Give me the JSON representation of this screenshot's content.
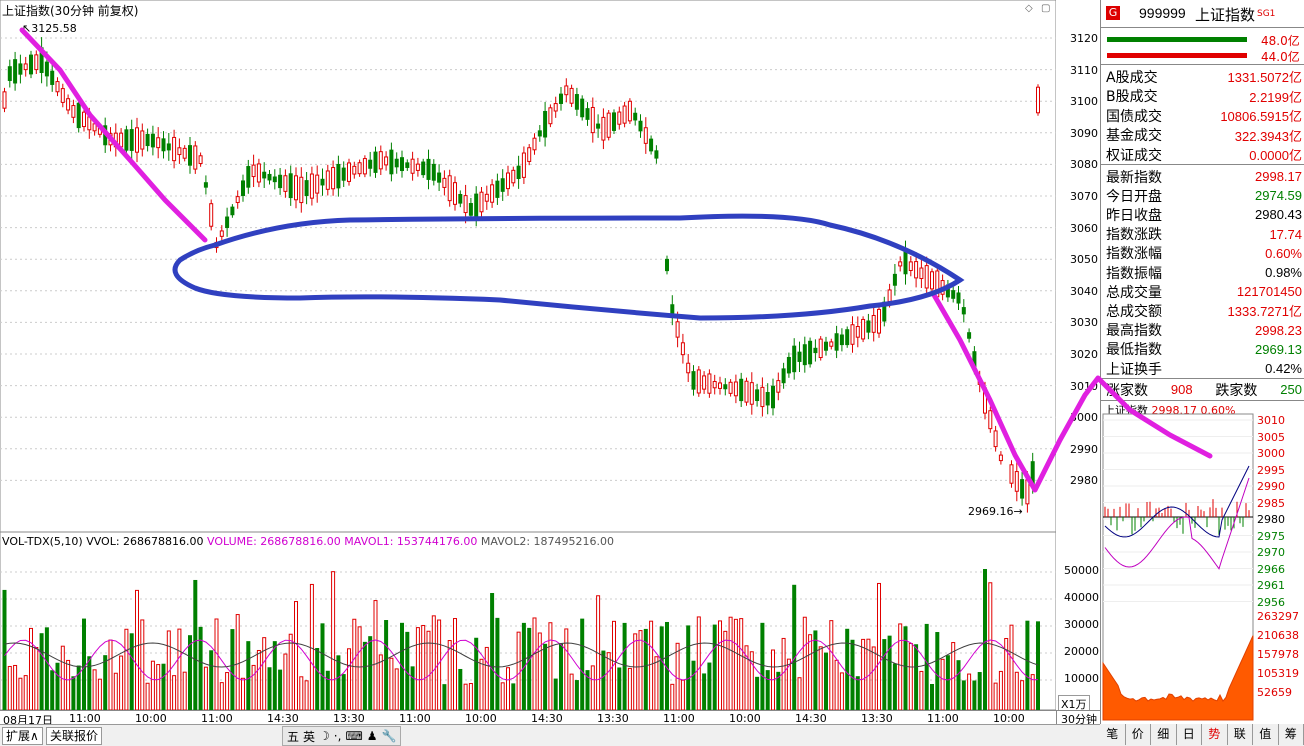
{
  "main_chart": {
    "title": "上证指数(30分钟 前复权)",
    "high_label": "3125.58",
    "low_label": "2969.16",
    "y_ticks": [
      "3120",
      "3110",
      "3100",
      "3090",
      "3080",
      "3070",
      "3060",
      "3050",
      "3040",
      "3030",
      "3020",
      "3010",
      "3000",
      "2990",
      "2980"
    ]
  },
  "volume": {
    "indicator": "VOL-TDX(5,10)",
    "vvol": "VVOL: 268678816.00",
    "volume": "VOLUME: 268678816.00",
    "mavol1": "MAVOL1: 153744176.00",
    "mavol2": "MAVOL2: 187495216.00",
    "y_ticks": [
      "50000",
      "40000",
      "30000",
      "20000",
      "10000"
    ],
    "unit": "X1万"
  },
  "time_axis": [
    "08月17日",
    "11:00",
    "10:00",
    "11:00",
    "14:30",
    "13:30",
    "11:00",
    "10:00",
    "14:30",
    "13:30",
    "11:00",
    "10:00",
    "14:30",
    "13:30",
    "11:00",
    "10:00",
    "14:30"
  ],
  "period_label": "30分钟",
  "bottom_tabs": {
    "expand": "扩展∧",
    "related": "关联报价"
  },
  "ime": [
    "五",
    "英",
    "☽",
    "·,",
    "⌨",
    "♟",
    "🔧"
  ],
  "right_panel": {
    "badge": "G",
    "code": "999999",
    "name": "上证指数",
    "sg": "SG1",
    "bar_values": [
      "48.0亿",
      "44.0亿"
    ],
    "rows1": [
      {
        "label": "A股成交",
        "value": "1331.5072亿",
        "color": "red"
      },
      {
        "label": "B股成交",
        "value": "2.2199亿",
        "color": "red"
      },
      {
        "label": "国债成交",
        "value": "10806.5915亿",
        "color": "red"
      },
      {
        "label": "基金成交",
        "value": "322.3943亿",
        "color": "red"
      },
      {
        "label": "权证成交",
        "value": "0.0000亿",
        "color": "red"
      }
    ],
    "rows2": [
      {
        "label": "最新指数",
        "value": "2998.17",
        "color": "red"
      },
      {
        "label": "今日开盘",
        "value": "2974.59",
        "color": "green"
      },
      {
        "label": "昨日收盘",
        "value": "2980.43",
        "color": "black"
      },
      {
        "label": "指数涨跌",
        "value": "17.74",
        "color": "red"
      },
      {
        "label": "指数涨幅",
        "value": "0.60%",
        "color": "red"
      },
      {
        "label": "指数振幅",
        "value": "0.98%",
        "color": "black"
      },
      {
        "label": "总成交量",
        "value": "121701450",
        "color": "red"
      },
      {
        "label": "总成交额",
        "value": "1333.7271亿",
        "color": "red"
      },
      {
        "label": "最高指数",
        "value": "2998.23",
        "color": "red"
      },
      {
        "label": "最低指数",
        "value": "2969.13",
        "color": "green"
      },
      {
        "label": "上证换手",
        "value": "0.42%",
        "color": "black"
      }
    ],
    "up_label": "涨家数",
    "up_value": "908",
    "down_label": "跌家数",
    "down_value": "250",
    "mini_title": "上证指数",
    "mini_price": "2998.17",
    "mini_pct": "0.60%",
    "mini_price_ticks": [
      "3010",
      "3005",
      "3000",
      "2995",
      "2990",
      "2985",
      "2980",
      "2975",
      "2970",
      "2966",
      "2961",
      "2956"
    ],
    "mini_vol_ticks": [
      "263297",
      "210638",
      "157978",
      "105319",
      "52659"
    ],
    "tabs": [
      "笔",
      "价",
      "细",
      "日",
      "势",
      "联",
      "值",
      "筹"
    ]
  }
}
